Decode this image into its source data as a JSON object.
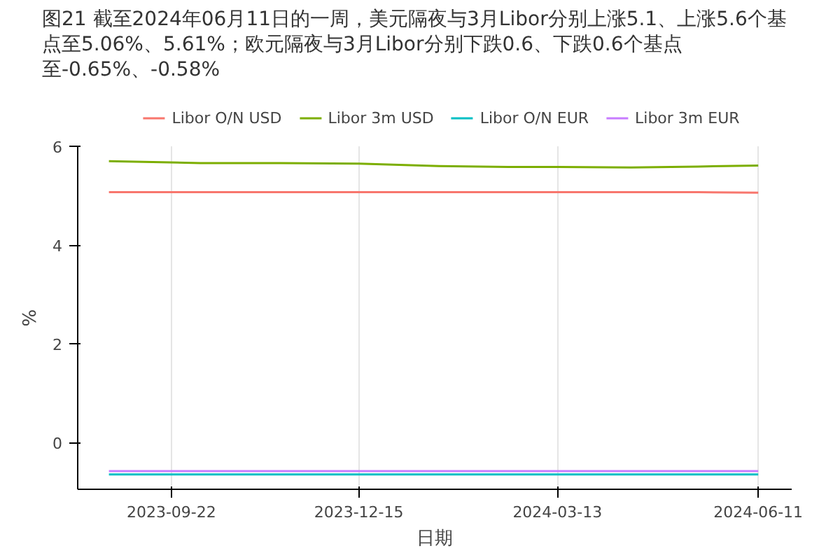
{
  "chart_data": {
    "type": "line",
    "title": "图21  截至2024年06月11日的一周，美元隔夜与3月Libor分别上涨5.1、上涨5.6个基点至5.06%、5.61%；欧元隔夜与3月Libor分别下跌0.6、下跌0.6个基点至-0.65%、-0.58%",
    "xlabel": "日期",
    "ylabel": "%",
    "x": [
      "2023-08-25",
      "2023-10-05",
      "2023-11-10",
      "2023-12-15",
      "2024-01-20",
      "2024-02-20",
      "2024-03-13",
      "2024-04-15",
      "2024-05-15",
      "2024-06-11"
    ],
    "series": [
      {
        "name": "Libor O/N USD",
        "color": "#f8766d",
        "values": [
          5.07,
          5.07,
          5.07,
          5.07,
          5.07,
          5.07,
          5.07,
          5.07,
          5.07,
          5.06
        ]
      },
      {
        "name": "Libor 3m USD",
        "color": "#7cae00",
        "values": [
          5.7,
          5.66,
          5.66,
          5.65,
          5.6,
          5.58,
          5.58,
          5.57,
          5.59,
          5.61
        ]
      },
      {
        "name": "Libor O/N EUR",
        "color": "#00bfc4",
        "values": [
          -0.65,
          -0.65,
          -0.65,
          -0.65,
          -0.65,
          -0.65,
          -0.65,
          -0.65,
          -0.65,
          -0.65
        ]
      },
      {
        "name": "Libor 3m EUR",
        "color": "#c77cff",
        "values": [
          -0.58,
          -0.58,
          -0.58,
          -0.58,
          -0.58,
          -0.58,
          -0.58,
          -0.58,
          -0.58,
          -0.58
        ]
      }
    ],
    "xlim": [
      "2023-08-11",
      "2024-06-26"
    ],
    "xticks": [
      "2023-09-22",
      "2023-12-15",
      "2024-03-13",
      "2024-06-11"
    ],
    "ylim": [
      -0.95,
      6
    ],
    "yticks": [
      0,
      2,
      4,
      6
    ],
    "grid": "x",
    "legend": "top",
    "line_style": "solid",
    "marker": "none"
  }
}
